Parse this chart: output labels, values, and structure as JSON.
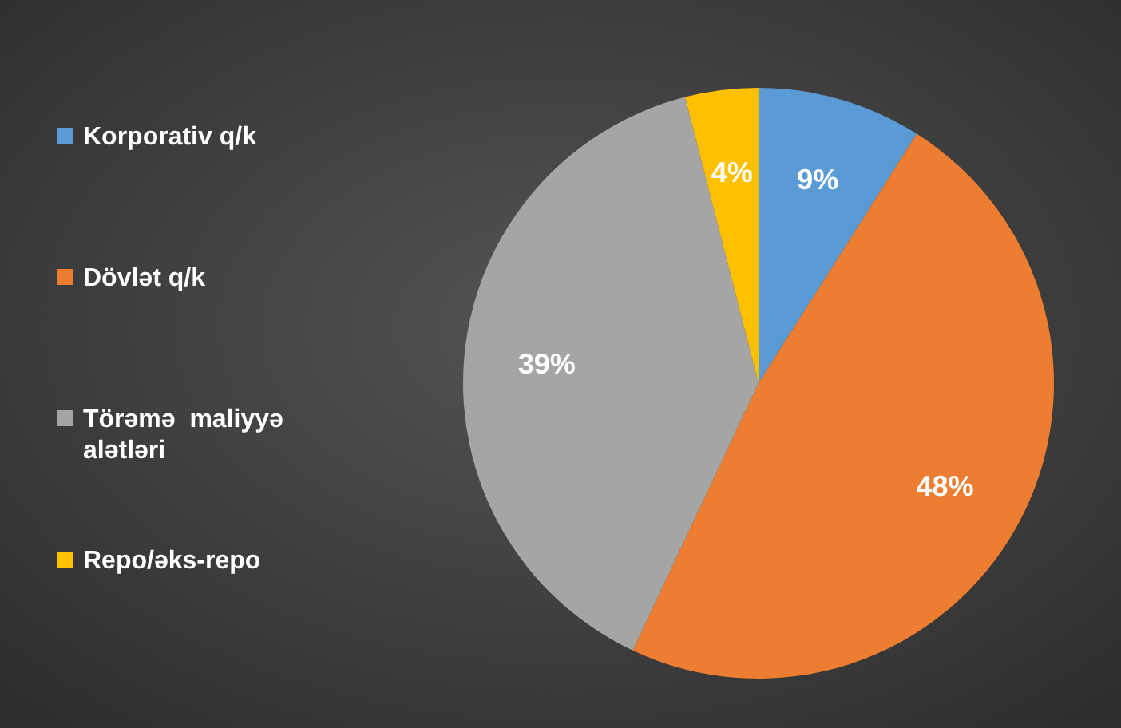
{
  "chart_data": {
    "type": "pie",
    "categories": [
      "Korporativ q/k",
      "Dövlət q/k",
      "Törəmə  maliyyə alətləri",
      "Repo/əks-repo"
    ],
    "values": [
      9,
      48,
      39,
      4
    ],
    "colors": [
      "#5b9bd5",
      "#ed7d31",
      "#a5a5a5",
      "#ffc000"
    ],
    "value_labels": [
      "9%",
      "48%",
      "39%",
      "4%"
    ],
    "legend": "left"
  }
}
